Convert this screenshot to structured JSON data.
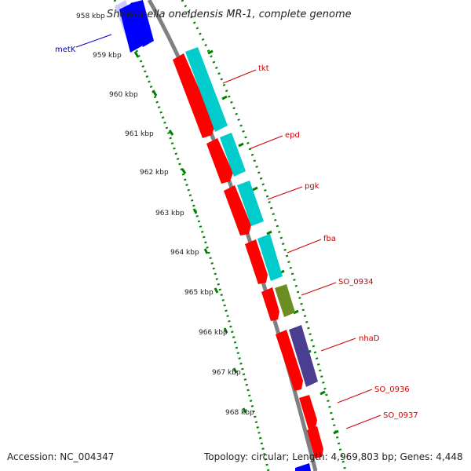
{
  "title": "Shewanella oneidensis MR-1, complete genome",
  "footer": {
    "accession": "Accession: NC_004347",
    "summary": "Topology: circular; Length: 4,969,803 bp; Genes: 4,448"
  },
  "kbp_labels": [
    "958 kbp",
    "959 kbp",
    "960 kbp",
    "961 kbp",
    "962 kbp",
    "963 kbp",
    "964 kbp",
    "965 kbp",
    "966 kbp",
    "967 kbp",
    "968 kbp"
  ],
  "genes": [
    {
      "label": "metK",
      "color": "#0000cc"
    },
    {
      "label": "tkt",
      "color": "#cc0000"
    },
    {
      "label": "epd",
      "color": "#cc0000"
    },
    {
      "label": "pgk",
      "color": "#cc0000"
    },
    {
      "label": "fba",
      "color": "#cc0000"
    },
    {
      "label": "SO_0934",
      "color": "#cc0000"
    },
    {
      "label": "nhaD",
      "color": "#cc0000"
    },
    {
      "label": "SO_0936",
      "color": "#cc0000"
    },
    {
      "label": "SO_0937",
      "color": "#cc0000"
    }
  ],
  "colors": {
    "backbone": "#808080",
    "cds_red": "#ff0000",
    "cds_cyan": "#00cccc",
    "cds_olive": "#6b8e23",
    "cds_purple": "#4b3d8f",
    "cds_blue": "#0000ff",
    "tick_green": "#007f00"
  }
}
